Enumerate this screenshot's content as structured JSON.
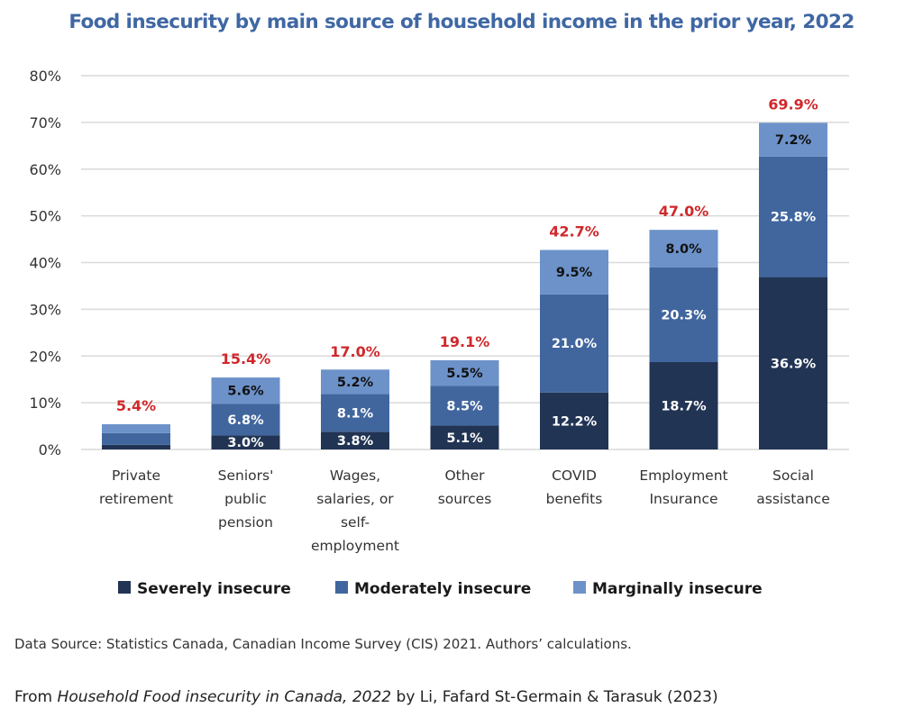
{
  "chart_data": {
    "type": "bar",
    "stacked": true,
    "title": "Food insecurity by main source of household income in the prior year, 2022",
    "xlabel": "",
    "ylabel": "",
    "ylim": [
      0,
      80
    ],
    "yticks": [
      0,
      10,
      20,
      30,
      40,
      50,
      60,
      70,
      80
    ],
    "ytick_labels": [
      "0%",
      "10%",
      "20%",
      "30%",
      "40%",
      "50%",
      "60%",
      "70%",
      "80%"
    ],
    "grid": true,
    "legend_position": "bottom",
    "categories": [
      [
        "Private",
        "retirement"
      ],
      [
        "Seniors'",
        "public",
        "pension"
      ],
      [
        "Wages,",
        "salaries, or",
        "self-",
        "employment"
      ],
      [
        "Other",
        "sources"
      ],
      [
        "COVID",
        "benefits"
      ],
      [
        "Employment",
        "Insurance"
      ],
      [
        "Social",
        "assistance"
      ]
    ],
    "series": [
      {
        "name": "Severely insecure",
        "color": "#213454",
        "label_color": "#ffffff",
        "values": [
          1.0,
          3.0,
          3.8,
          5.1,
          12.2,
          18.7,
          36.9
        ],
        "labels": [
          "",
          "3.0%",
          "3.8%",
          "5.1%",
          "12.2%",
          "18.7%",
          "36.9%"
        ]
      },
      {
        "name": "Moderately insecure",
        "color": "#41669e",
        "label_color": "#ffffff",
        "values": [
          2.5,
          6.8,
          8.1,
          8.5,
          21.0,
          20.3,
          25.8
        ],
        "labels": [
          "",
          "6.8%",
          "8.1%",
          "8.5%",
          "21.0%",
          "20.3%",
          "25.8%"
        ]
      },
      {
        "name": "Marginally insecure",
        "color": "#6c92c9",
        "label_color": "#111111",
        "values": [
          1.9,
          5.6,
          5.2,
          5.5,
          9.5,
          8.0,
          7.2
        ],
        "labels": [
          "",
          "5.6%",
          "5.2%",
          "5.5%",
          "9.5%",
          "8.0%",
          "7.2%"
        ]
      }
    ],
    "totals": [
      5.4,
      15.4,
      17.0,
      19.1,
      42.7,
      47.0,
      69.9
    ],
    "total_labels": [
      "5.4%",
      "15.4%",
      "17.0%",
      "19.1%",
      "42.7%",
      "47.0%",
      "69.9%"
    ],
    "total_label_color": "#d0282b"
  },
  "footer": {
    "source": "Data Source: Statistics Canada, Canadian Income Survey (CIS) 2021. Authors’ calculations.",
    "citation_prefix": "From ",
    "citation_title": "Household Food insecurity in Canada, 2022",
    "citation_suffix": " by Li, Fafard St-Germain & Tarasuk (2023)"
  }
}
